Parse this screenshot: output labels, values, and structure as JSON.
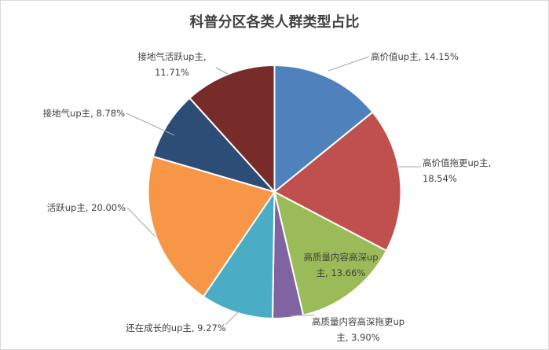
{
  "chart_data": {
    "type": "pie",
    "title": "科普分区各类人群类型占比",
    "slices": [
      {
        "label": "高价值up主",
        "value": 14.15,
        "value_label": "14.15%",
        "color": "#4f81bd"
      },
      {
        "label": "高价值拖更up主",
        "value": 18.54,
        "value_label": "18.54%",
        "color": "#c0504d"
      },
      {
        "label": "高质量内容高深up主",
        "value": 13.66,
        "value_label": "13.66%",
        "color": "#9bbb59"
      },
      {
        "label": "高质量内容高深拖更up主",
        "value": 3.9,
        "value_label": "3.90%",
        "color": "#8064a2"
      },
      {
        "label": "还在成长的up主",
        "value": 9.27,
        "value_label": "9.27%",
        "color": "#4bacc6"
      },
      {
        "label": "活跃up主",
        "value": 20.0,
        "value_label": "20.00%",
        "color": "#f79646"
      },
      {
        "label": "接地气up主",
        "value": 8.78,
        "value_label": "8.78%",
        "color": "#2c4d75"
      },
      {
        "label": "接地气活跃up主",
        "value": 11.71,
        "value_label": "11.71%",
        "color": "#772c2a"
      }
    ],
    "legend": "none",
    "data_labels": "category-name, percentage"
  }
}
